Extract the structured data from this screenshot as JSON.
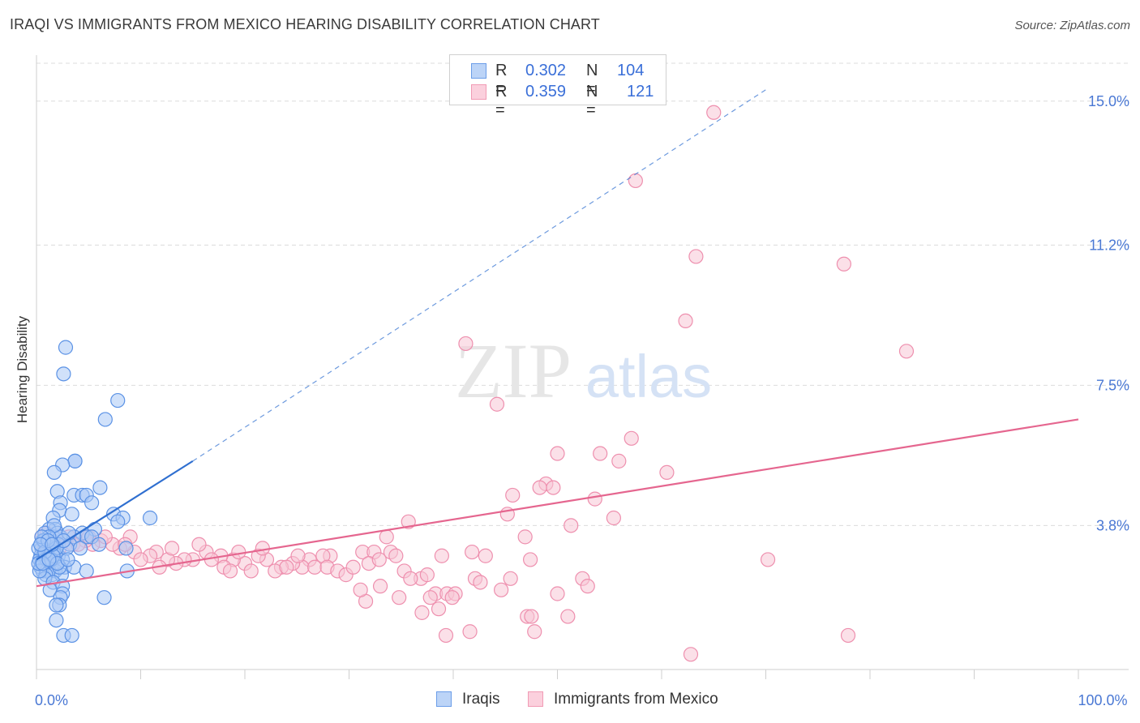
{
  "title": "IRAQI VS IMMIGRANTS FROM MEXICO HEARING DISABILITY CORRELATION CHART",
  "source": "Source: ZipAtlas.com",
  "watermark": {
    "zip": "ZIP",
    "atlas": "atlas"
  },
  "legend_top": [
    {
      "r_label": "R =",
      "r_value": "0.302",
      "n_label": "N =",
      "n_value": "104",
      "color": "#6b9de8"
    },
    {
      "r_label": "R =",
      "r_value": "0.359",
      "n_label": "N =",
      "n_value": "121",
      "color": "#f19bb5"
    }
  ],
  "legend_bottom": [
    {
      "label": "Iraqis",
      "color": "#6b9de8"
    },
    {
      "label": "Immigrants from Mexico",
      "color": "#f19bb5"
    }
  ],
  "colors": {
    "iraqi_fill": "#a9c8f5",
    "iraqi_stroke": "#5b92e5",
    "iraqi_line": "#2f6fd0",
    "mexico_fill": "#f8c6d5",
    "mexico_stroke": "#ee8fae",
    "mexico_line": "#e5668f",
    "tick_text": "#4a78d4",
    "grid": "#dcdcdc"
  },
  "chart_data": {
    "type": "scatter",
    "title": "IRAQI VS IMMIGRANTS FROM MEXICO HEARING DISABILITY CORRELATION CHART",
    "xlabel": "",
    "ylabel": "Hearing Disability",
    "xlim": [
      0,
      100
    ],
    "ylim": [
      0,
      16
    ],
    "x_tick_labels": [
      {
        "value": 0,
        "label": "0.0%"
      },
      {
        "value": 100,
        "label": "100.0%"
      }
    ],
    "y_ticks": [
      {
        "value": 3.8,
        "label": "3.8%"
      },
      {
        "value": 7.5,
        "label": "7.5%"
      },
      {
        "value": 11.2,
        "label": "11.2%"
      },
      {
        "value": 15.0,
        "label": "15.0%"
      }
    ],
    "series": [
      {
        "name": "Iraqis",
        "r": 0.302,
        "n": 104,
        "trend": {
          "solid": [
            [
              0,
              2.9
            ],
            [
              15,
              5.5
            ]
          ],
          "dashed": [
            [
              15,
              5.5
            ],
            [
              70,
              15.3
            ]
          ]
        },
        "points": [
          [
            2.8,
            8.5
          ],
          [
            2.6,
            7.8
          ],
          [
            7.8,
            7.1
          ],
          [
            6.6,
            6.6
          ],
          [
            3.7,
            5.5
          ],
          [
            3.7,
            5.5
          ],
          [
            2.5,
            5.4
          ],
          [
            1.7,
            5.2
          ],
          [
            6.1,
            4.8
          ],
          [
            2.0,
            4.7
          ],
          [
            3.6,
            4.6
          ],
          [
            4.4,
            4.6
          ],
          [
            4.8,
            4.6
          ],
          [
            5.3,
            4.4
          ],
          [
            2.3,
            4.4
          ],
          [
            7.4,
            4.1
          ],
          [
            8.3,
            4.0
          ],
          [
            10.9,
            4.0
          ],
          [
            2.2,
            4.2
          ],
          [
            1.6,
            4.0
          ],
          [
            3.4,
            4.1
          ],
          [
            7.8,
            3.9
          ],
          [
            5.6,
            3.7
          ],
          [
            1.8,
            3.7
          ],
          [
            1.2,
            3.7
          ],
          [
            0.8,
            3.6
          ],
          [
            1.6,
            3.5
          ],
          [
            2.0,
            3.6
          ],
          [
            2.3,
            3.5
          ],
          [
            4.4,
            3.6
          ],
          [
            4.8,
            3.5
          ],
          [
            5.3,
            3.5
          ],
          [
            3.6,
            3.5
          ],
          [
            0.6,
            3.4
          ],
          [
            1.4,
            3.3
          ],
          [
            2.1,
            3.3
          ],
          [
            0.9,
            3.3
          ],
          [
            3.2,
            3.3
          ],
          [
            4.2,
            3.2
          ],
          [
            6.0,
            3.3
          ],
          [
            8.6,
            3.2
          ],
          [
            0.5,
            3.2
          ],
          [
            0.9,
            3.1
          ],
          [
            1.3,
            3.1
          ],
          [
            1.8,
            3.1
          ],
          [
            2.1,
            3.0
          ],
          [
            0.6,
            3.0
          ],
          [
            0.4,
            3.0
          ],
          [
            1.1,
            3.0
          ],
          [
            1.5,
            2.9
          ],
          [
            2.5,
            2.9
          ],
          [
            0.7,
            2.9
          ],
          [
            0.3,
            2.9
          ],
          [
            0.9,
            2.8
          ],
          [
            1.3,
            2.8
          ],
          [
            0.5,
            2.8
          ],
          [
            0.8,
            2.7
          ],
          [
            2.7,
            2.7
          ],
          [
            3.6,
            2.7
          ],
          [
            1.1,
            2.7
          ],
          [
            0.4,
            2.7
          ],
          [
            0.6,
            2.6
          ],
          [
            1.0,
            2.6
          ],
          [
            1.8,
            2.6
          ],
          [
            4.8,
            2.6
          ],
          [
            8.7,
            2.6
          ],
          [
            1.5,
            2.5
          ],
          [
            0.9,
            2.5
          ],
          [
            2.4,
            2.5
          ],
          [
            0.8,
            2.4
          ],
          [
            1.6,
            2.3
          ],
          [
            2.5,
            2.2
          ],
          [
            1.3,
            2.1
          ],
          [
            2.5,
            2.0
          ],
          [
            2.3,
            1.9
          ],
          [
            6.5,
            1.9
          ],
          [
            2.2,
            1.7
          ],
          [
            1.9,
            1.7
          ],
          [
            1.9,
            1.3
          ],
          [
            2.6,
            0.9
          ],
          [
            3.4,
            0.9
          ],
          [
            0.2,
            3.2
          ],
          [
            0.3,
            2.6
          ],
          [
            1.7,
            3.8
          ],
          [
            2.9,
            3.2
          ],
          [
            3.1,
            3.6
          ],
          [
            1.2,
            3.5
          ],
          [
            0.7,
            3.4
          ],
          [
            1.9,
            3.2
          ],
          [
            1.0,
            2.9
          ],
          [
            2.2,
            2.7
          ],
          [
            0.5,
            3.5
          ],
          [
            1.4,
            2.9
          ],
          [
            2.6,
            3.4
          ],
          [
            0.2,
            2.8
          ],
          [
            1.6,
            3.0
          ],
          [
            0.8,
            3.1
          ],
          [
            1.1,
            3.4
          ],
          [
            2.0,
            2.8
          ],
          [
            0.4,
            3.3
          ],
          [
            3.0,
            2.9
          ],
          [
            1.5,
            3.3
          ],
          [
            0.6,
            2.8
          ],
          [
            1.2,
            2.9
          ]
        ]
      },
      {
        "name": "Immigrants from Mexico",
        "r": 0.359,
        "n": 121,
        "trend": {
          "solid": [
            [
              0,
              2.2
            ],
            [
              100,
              6.6
            ]
          ],
          "dashed": []
        },
        "points": [
          [
            65.0,
            14.7
          ],
          [
            57.5,
            12.9
          ],
          [
            63.3,
            10.9
          ],
          [
            77.5,
            10.7
          ],
          [
            62.3,
            9.2
          ],
          [
            83.5,
            8.4
          ],
          [
            41.2,
            8.6
          ],
          [
            44.2,
            7.0
          ],
          [
            57.1,
            6.1
          ],
          [
            54.1,
            5.7
          ],
          [
            50.0,
            5.7
          ],
          [
            55.9,
            5.5
          ],
          [
            60.5,
            5.2
          ],
          [
            48.9,
            4.9
          ],
          [
            49.6,
            4.8
          ],
          [
            48.3,
            4.8
          ],
          [
            45.7,
            4.6
          ],
          [
            53.6,
            4.5
          ],
          [
            45.2,
            4.1
          ],
          [
            55.4,
            4.0
          ],
          [
            35.7,
            3.9
          ],
          [
            51.3,
            3.8
          ],
          [
            46.9,
            3.5
          ],
          [
            33.6,
            3.5
          ],
          [
            70.2,
            2.9
          ],
          [
            41.8,
            3.1
          ],
          [
            43.1,
            3.0
          ],
          [
            38.9,
            3.0
          ],
          [
            34.0,
            3.1
          ],
          [
            31.3,
            3.1
          ],
          [
            32.4,
            3.1
          ],
          [
            28.2,
            3.0
          ],
          [
            27.5,
            3.0
          ],
          [
            26.2,
            2.9
          ],
          [
            25.5,
            2.7
          ],
          [
            24.6,
            2.8
          ],
          [
            23.5,
            2.7
          ],
          [
            22.1,
            2.9
          ],
          [
            21.3,
            3.0
          ],
          [
            20.0,
            2.8
          ],
          [
            18.9,
            2.9
          ],
          [
            17.7,
            3.0
          ],
          [
            16.3,
            3.1
          ],
          [
            15.0,
            2.9
          ],
          [
            14.2,
            2.9
          ],
          [
            13.4,
            2.8
          ],
          [
            12.6,
            2.9
          ],
          [
            11.5,
            3.1
          ],
          [
            10.9,
            3.0
          ],
          [
            9.4,
            3.1
          ],
          [
            8.0,
            3.2
          ],
          [
            9.0,
            3.5
          ],
          [
            7.3,
            3.3
          ],
          [
            6.2,
            3.4
          ],
          [
            5.4,
            3.3
          ],
          [
            4.7,
            3.4
          ],
          [
            3.5,
            3.3
          ],
          [
            2.6,
            3.4
          ],
          [
            1.8,
            3.5
          ],
          [
            1.0,
            3.6
          ],
          [
            0.5,
            3.5
          ],
          [
            0.8,
            3.2
          ],
          [
            1.5,
            3.4
          ],
          [
            2.2,
            3.2
          ],
          [
            3.1,
            3.5
          ],
          [
            4.0,
            3.3
          ],
          [
            5.0,
            3.5
          ],
          [
            6.6,
            3.5
          ],
          [
            8.5,
            3.3
          ],
          [
            10.0,
            2.9
          ],
          [
            11.8,
            2.7
          ],
          [
            13.0,
            3.2
          ],
          [
            15.6,
            3.3
          ],
          [
            16.8,
            2.9
          ],
          [
            18.0,
            2.7
          ],
          [
            19.4,
            3.1
          ],
          [
            20.6,
            2.6
          ],
          [
            21.7,
            3.2
          ],
          [
            22.9,
            2.6
          ],
          [
            24.0,
            2.7
          ],
          [
            25.1,
            3.0
          ],
          [
            26.7,
            2.7
          ],
          [
            27.9,
            2.7
          ],
          [
            28.9,
            2.6
          ],
          [
            29.7,
            2.5
          ],
          [
            30.4,
            2.7
          ],
          [
            31.9,
            2.8
          ],
          [
            32.9,
            2.9
          ],
          [
            34.5,
            3.0
          ],
          [
            35.3,
            2.6
          ],
          [
            36.9,
            2.4
          ],
          [
            37.5,
            2.5
          ],
          [
            38.3,
            2.0
          ],
          [
            39.4,
            2.0
          ],
          [
            40.2,
            2.0
          ],
          [
            42.1,
            2.4
          ],
          [
            42.6,
            2.3
          ],
          [
            44.6,
            2.1
          ],
          [
            45.5,
            2.4
          ],
          [
            47.4,
            2.9
          ],
          [
            52.4,
            2.4
          ],
          [
            52.9,
            2.2
          ],
          [
            35.9,
            2.4
          ],
          [
            33.0,
            2.2
          ],
          [
            31.6,
            1.8
          ],
          [
            34.8,
            1.9
          ],
          [
            37.8,
            1.9
          ],
          [
            37.0,
            1.5
          ],
          [
            38.6,
            1.6
          ],
          [
            39.9,
            1.9
          ],
          [
            47.1,
            1.4
          ],
          [
            47.5,
            1.4
          ],
          [
            51.0,
            1.4
          ],
          [
            50.0,
            2.0
          ],
          [
            47.8,
            1.0
          ],
          [
            41.6,
            1.0
          ],
          [
            39.3,
            0.9
          ],
          [
            31.1,
            2.1
          ],
          [
            62.8,
            0.4
          ],
          [
            77.9,
            0.9
          ],
          [
            18.6,
            2.6
          ]
        ]
      }
    ]
  }
}
